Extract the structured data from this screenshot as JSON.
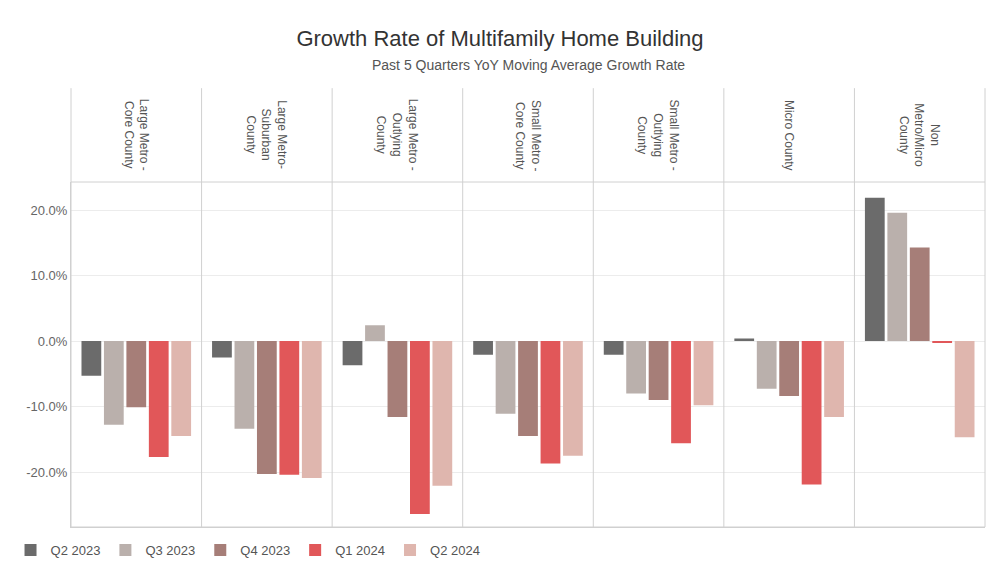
{
  "chart_data": {
    "type": "bar",
    "title": "Growth Rate of Multifamily Home Building",
    "subtitle": "Past 5 Quarters YoY Moving Average Growth Rate",
    "categories": [
      "Large Metro - Core County",
      "Large Metro- Suburban County",
      "Large Metro - Outlying County",
      "Small Metro - Core County",
      "Small Metro - Outlying County",
      "Micro County",
      "Non Metro/Micro County"
    ],
    "series": [
      {
        "name": "Q2 2023",
        "color": "#6b6b6b",
        "values": [
          -5.3,
          -2.5,
          -3.7,
          -2.1,
          -2.1,
          0.4,
          21.9
        ]
      },
      {
        "name": "Q3 2023",
        "color": "#bab0ac",
        "values": [
          -12.8,
          -13.4,
          2.4,
          -11.1,
          -8.0,
          -7.3,
          19.6
        ]
      },
      {
        "name": "Q4 2023",
        "color": "#a67e78",
        "values": [
          -10.1,
          -20.3,
          -11.6,
          -14.5,
          -9.0,
          -8.4,
          14.3
        ]
      },
      {
        "name": "Q1 2024",
        "color": "#e15759",
        "values": [
          -17.7,
          -20.4,
          -26.4,
          -18.7,
          -15.6,
          -21.9,
          -0.2
        ]
      },
      {
        "name": "Q2 2024",
        "color": "#dfb6ae",
        "values": [
          -14.5,
          -20.9,
          -22.1,
          -17.5,
          -9.8,
          -11.6,
          -14.7
        ]
      }
    ],
    "ylim": [
      -28.4,
      24.3
    ],
    "yticks": [
      {
        "value": -20,
        "label": "-20.0%"
      },
      {
        "value": -10,
        "label": "-10.0%"
      },
      {
        "value": 0,
        "label": "0.0%"
      },
      {
        "value": 10,
        "label": "10.0%"
      },
      {
        "value": 20,
        "label": "20.0%"
      }
    ],
    "grid": true,
    "legend": "bottom"
  }
}
